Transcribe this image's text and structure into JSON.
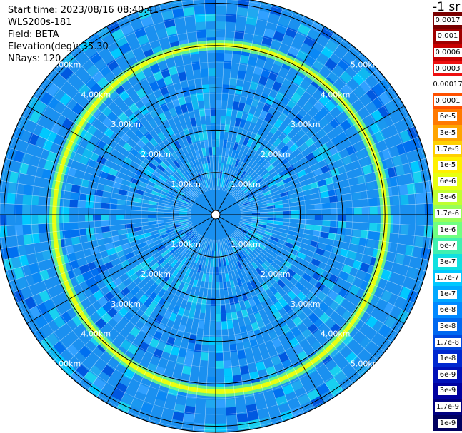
{
  "header": {
    "start_time": "Start time: 2023/08/16 08:40:41",
    "instrument": "WLS200s-181",
    "field": "Field: BETA",
    "elevation": "Elevation(deg): 35.30",
    "nrays": "NRays: 120"
  },
  "colorbar": {
    "units": "-1 sr",
    "entries": [
      {
        "label": "0.0017",
        "color": "#7a0000"
      },
      {
        "label": "0.001",
        "color": "#a00000"
      },
      {
        "label": "0.0006",
        "color": "#c80000"
      },
      {
        "label": "0.0003",
        "color": "#ee1010"
      },
      {
        "label": "0.00017",
        "color": "#ffffff"
      },
      {
        "label": "0.0001",
        "color": "#ff5000"
      },
      {
        "label": "6e-5",
        "color": "#ff7a00"
      },
      {
        "label": "3e-5",
        "color": "#ffa400"
      },
      {
        "label": "1.7e-5",
        "color": "#ffd000"
      },
      {
        "label": "1e-5",
        "color": "#fff000"
      },
      {
        "label": "6e-6",
        "color": "#e8ff10"
      },
      {
        "label": "3e-6",
        "color": "#c0ff30"
      },
      {
        "label": "1.7e-6",
        "color": "#98ff58"
      },
      {
        "label": "1e-6",
        "color": "#70ff80"
      },
      {
        "label": "6e-7",
        "color": "#40f0b0"
      },
      {
        "label": "3e-7",
        "color": "#10e0e0"
      },
      {
        "label": "1.7e-7",
        "color": "#00c8ff"
      },
      {
        "label": "1e-7",
        "color": "#00a8ff"
      },
      {
        "label": "6e-8",
        "color": "#0088ff"
      },
      {
        "label": "3e-8",
        "color": "#0068f0"
      },
      {
        "label": "1.7e-8",
        "color": "#0048e0"
      },
      {
        "label": "1e-8",
        "color": "#0028d0"
      },
      {
        "label": "6e-9",
        "color": "#0010b8"
      },
      {
        "label": "3e-9",
        "color": "#0000a0"
      },
      {
        "label": "1.7e-9",
        "color": "#000080"
      },
      {
        "label": "1e-9",
        "color": "#000060"
      }
    ]
  },
  "range_rings": {
    "ring_1": "1.00km",
    "ring_2": "2.00km",
    "ring_3": "3.00km",
    "ring_4": "4.00km",
    "ring_5": "5.00km"
  },
  "scan": {
    "ring_color": "#e8ff10",
    "background_color": "#1a90f0"
  }
}
